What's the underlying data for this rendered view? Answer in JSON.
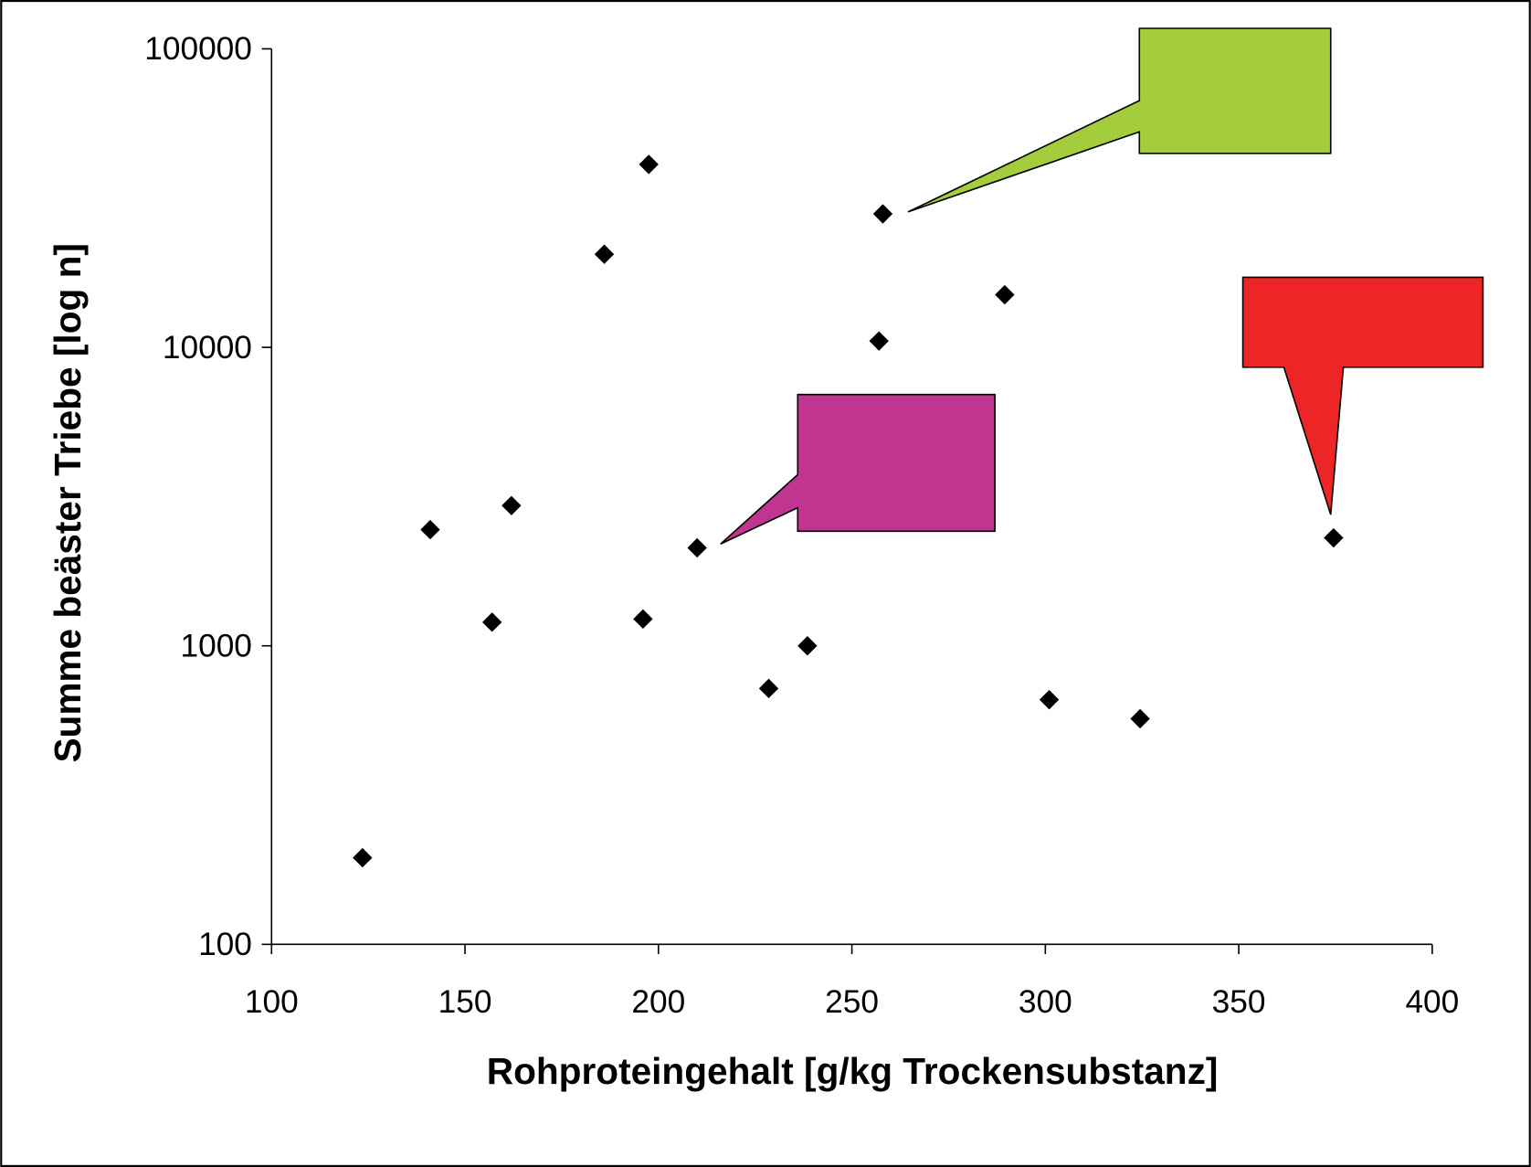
{
  "chart_data": {
    "type": "scatter",
    "x_label": "Rohproteingehalt [g/kg Trockensubstanz]",
    "y_label": "Summe beäster Triebe [log n]",
    "x": [
      123.5,
      141,
      157,
      162,
      186,
      197.5,
      196,
      210,
      228.5,
      238.5,
      258,
      257,
      289.5,
      301,
      324.5,
      374.5
    ],
    "values": [
      195,
      2450,
      1200,
      2950,
      20500,
      41000,
      1230,
      2130,
      720,
      1000,
      28000,
      10500,
      15000,
      660,
      570,
      2300
    ],
    "xlim": [
      100,
      400
    ],
    "xticks": [
      100,
      150,
      200,
      250,
      300,
      350,
      400
    ],
    "ylim": [
      100,
      100000
    ],
    "yticks": [
      100,
      1000,
      10000,
      100000
    ],
    "log_y": true,
    "grid": false,
    "color": "#000000",
    "marker": "diamond"
  }
}
